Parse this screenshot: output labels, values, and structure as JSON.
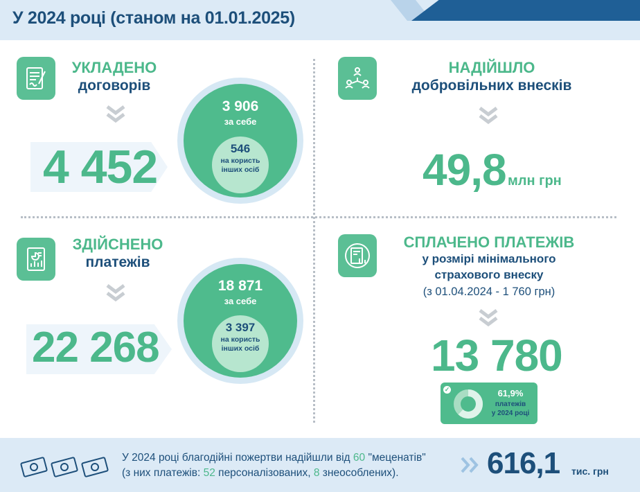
{
  "header": {
    "title": "У 2024 році (станом на 01.01.2025)"
  },
  "contracts": {
    "heading1": "УКЛАДЕНО",
    "heading2": "договорів",
    "icon": "contract-icon",
    "total": "4 452",
    "self_value": "3 906",
    "self_label": "за себе",
    "others_value": "546",
    "others_label1": "на користь",
    "others_label2": "інших осіб"
  },
  "contributions": {
    "heading1": "НАДІЙШЛО",
    "heading2": "добровільних внесків",
    "icon": "network-people-icon",
    "value": "49,8",
    "unit": "млн грн"
  },
  "payments": {
    "heading1": "ЗДІЙСНЕНО",
    "heading2": "платежів",
    "icon": "document-chart-icon",
    "total": "22 268",
    "self_value": "18 871",
    "self_label": "за себе",
    "others_value": "3 397",
    "others_label1": "на користь",
    "others_label2": "інших осіб"
  },
  "min_payments": {
    "heading1": "СПЛАЧЕНО ПЛАТЕЖІВ",
    "line1": "у розмірі мінімального",
    "line2": "страхового внеску",
    "line3": "(з 01.04.2024 - 1 760 грн)",
    "icon": "report-chart-icon",
    "value": "13 780",
    "badge_percent": "61,9%",
    "badge_label1": "платежів",
    "badge_label2": "у 2024 році",
    "badge_fraction": 0.619,
    "colors": {
      "accent": "#4fbb8d",
      "dark": "#1d4f7a"
    }
  },
  "footer": {
    "line1_a": "У 2024 році благодійні пожертви надійшли від",
    "line1_num": "60",
    "line1_b": "\"меценатів\"",
    "line2_a": "(з них платежів:",
    "line2_num1": "52",
    "line2_b": "персоналізованих,",
    "line2_num2": "8",
    "line2_c": "знеособлених).",
    "total_value": "616,1",
    "total_unit": "тис. грн",
    "icon": "money-icon"
  }
}
